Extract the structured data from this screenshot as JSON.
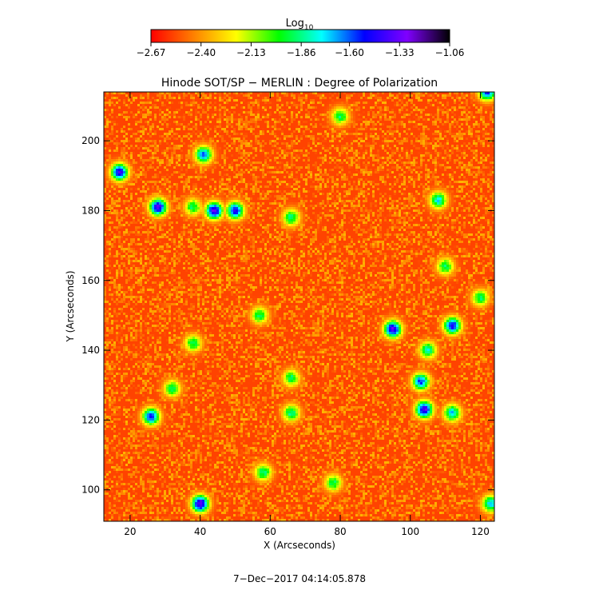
{
  "colorbar": {
    "label": "Log",
    "label_subscript": "10",
    "ticks": [
      -2.67,
      -2.4,
      -2.13,
      -1.86,
      -1.6,
      -1.33,
      -1.06
    ],
    "tick_labels": [
      "−2.67",
      "−2.40",
      "−2.13",
      "−1.86",
      "−1.60",
      "−1.33",
      "−1.06"
    ],
    "colormap": [
      "#ff0000",
      "#ff8000",
      "#ffff00",
      "#00ff00",
      "#00ffff",
      "#0000ff",
      "#8000ff",
      "#000000"
    ]
  },
  "chart_data": {
    "type": "heatmap",
    "title": "Hinode SOT/SP − MERLIN : Degree of Polarization",
    "xlabel": "X (Arcseconds)",
    "ylabel": "Y (Arcseconds)",
    "xlim": [
      12.5,
      124
    ],
    "ylim": [
      91,
      214
    ],
    "x_ticks": [
      20,
      40,
      60,
      80,
      100,
      120
    ],
    "y_ticks": [
      100,
      120,
      140,
      160,
      180,
      200
    ],
    "value_range": [
      -2.67,
      -1.06
    ],
    "background_level": -2.55,
    "features": [
      {
        "x": 28,
        "y": 181,
        "level": -1.35
      },
      {
        "x": 44,
        "y": 180,
        "level": -1.35
      },
      {
        "x": 38,
        "y": 181,
        "level": -1.9
      },
      {
        "x": 50,
        "y": 180,
        "level": -1.45
      },
      {
        "x": 66,
        "y": 178,
        "level": -1.85
      },
      {
        "x": 17,
        "y": 191,
        "level": -1.4
      },
      {
        "x": 41,
        "y": 196,
        "level": -1.6
      },
      {
        "x": 26,
        "y": 121,
        "level": -1.5
      },
      {
        "x": 32,
        "y": 129,
        "level": -1.9
      },
      {
        "x": 40,
        "y": 96,
        "level": -1.3
      },
      {
        "x": 95,
        "y": 146,
        "level": -1.35
      },
      {
        "x": 112,
        "y": 147,
        "level": -1.45
      },
      {
        "x": 104,
        "y": 123,
        "level": -1.35
      },
      {
        "x": 103,
        "y": 131,
        "level": -1.55
      },
      {
        "x": 105,
        "y": 140,
        "level": -1.8
      },
      {
        "x": 120,
        "y": 155,
        "level": -1.9
      },
      {
        "x": 108,
        "y": 183,
        "level": -1.75
      },
      {
        "x": 110,
        "y": 164,
        "level": -1.9
      },
      {
        "x": 112,
        "y": 122,
        "level": -1.7
      },
      {
        "x": 57,
        "y": 150,
        "level": -1.9
      },
      {
        "x": 58,
        "y": 105,
        "level": -1.85
      },
      {
        "x": 78,
        "y": 102,
        "level": -1.9
      },
      {
        "x": 66,
        "y": 132,
        "level": -1.9
      },
      {
        "x": 80,
        "y": 207,
        "level": -1.9
      },
      {
        "x": 122,
        "y": 214,
        "level": -1.5
      },
      {
        "x": 38,
        "y": 142,
        "level": -1.9
      },
      {
        "x": 123,
        "y": 96,
        "level": -1.7
      },
      {
        "x": 66,
        "y": 122,
        "level": -1.85
      }
    ]
  },
  "timestamp": "7−Dec−2017 04:14:05.878"
}
